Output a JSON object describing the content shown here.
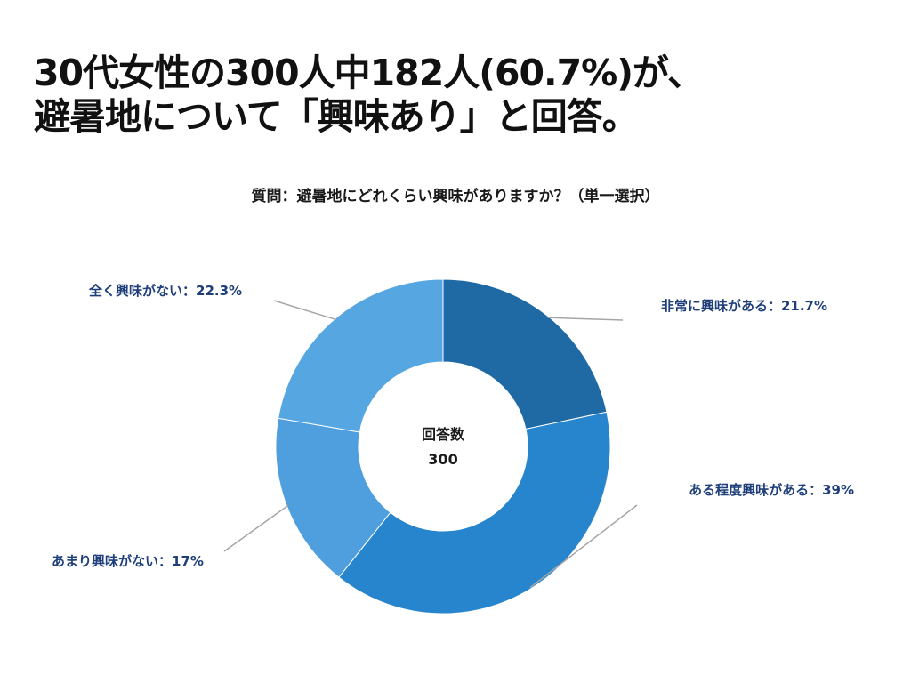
{
  "headline": {
    "line1": "30代女性の300人中182人(60.7%)が、",
    "line2": "避暑地について「興味あり」と回答。"
  },
  "question": "質問：避暑地にどれくらい興味がありますか？（単一選択）",
  "chart_data": {
    "type": "pie",
    "variant": "donut",
    "center_label": "回答数",
    "center_value": "300",
    "slices": [
      {
        "label": "非常に興味がある：21.7%",
        "value": 21.7,
        "color": "#1f6aa5"
      },
      {
        "label": "ある程度興味がある：39%",
        "value": 39.0,
        "color": "#2685cc"
      },
      {
        "label": "あまり興味がない：17%",
        "value": 17.0,
        "color": "#4f9fde"
      },
      {
        "label": "全く興味がない：22.3%",
        "value": 22.3,
        "color": "#56a6e1"
      }
    ]
  }
}
